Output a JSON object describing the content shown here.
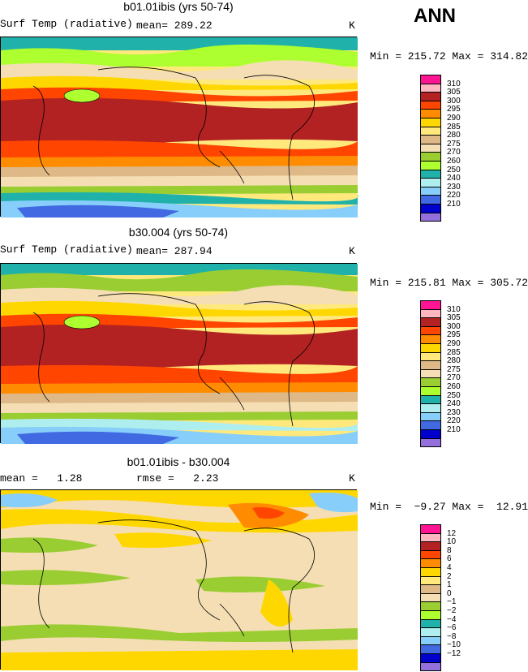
{
  "season": "ANN",
  "scale_colors": [
    "#ff1493",
    "#ffb6c1",
    "#b22222",
    "#ff4500",
    "#ff8c00",
    "#ffd700",
    "#ffe87c",
    "#deb887",
    "#f5deb3",
    "#9acd32",
    "#adff2f",
    "#20b2aa",
    "#afeeee",
    "#87cefa",
    "#4169e1",
    "#0000cd",
    "#9370db"
  ],
  "panels": [
    {
      "title": "b01.01ibis (yrs 50-74)",
      "left_label": "Surf Temp (radiative)",
      "stat_label": "mean= 289.22",
      "unit": "K",
      "minmax": "Min = 215.72 Max = 314.82",
      "legend_labels": [
        "310",
        "305",
        "300",
        "295",
        "290",
        "285",
        "280",
        "275",
        "270",
        "260",
        "250",
        "240",
        "230",
        "220",
        "210"
      ]
    },
    {
      "title": "b30.004 (yrs 50-74)",
      "left_label": "Surf Temp (radiative)",
      "stat_label": "mean= 287.94",
      "unit": "K",
      "minmax": "Min = 215.81 Max = 305.72",
      "legend_labels": [
        "310",
        "305",
        "300",
        "295",
        "290",
        "285",
        "280",
        "275",
        "270",
        "260",
        "250",
        "240",
        "230",
        "220",
        "210"
      ]
    },
    {
      "title": "b01.01ibis - b30.004",
      "left_label": "mean =   1.28",
      "stat_label": "rmse =   2.23",
      "unit": "K",
      "minmax": "Min =  −9.27 Max =  12.91",
      "legend_labels": [
        "12",
        "10",
        "8",
        "6",
        "4",
        "2",
        "1",
        "0",
        "−1",
        "−2",
        "−4",
        "−6",
        "−8",
        "−10",
        "−12"
      ]
    }
  ]
}
